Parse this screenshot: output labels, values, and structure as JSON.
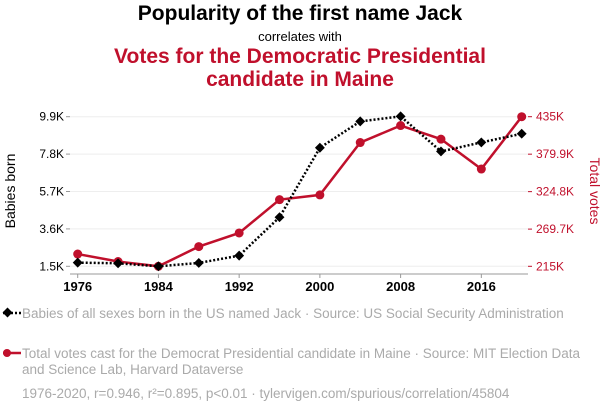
{
  "chart_data": {
    "type": "line",
    "title": "Popularity of the first name Jack",
    "subtitle": "correlates with",
    "title2": "Votes for the Democratic Presidential candidate in Maine",
    "x": [
      1976,
      1980,
      1984,
      1988,
      1992,
      1996,
      2000,
      2004,
      2008,
      2012,
      2016,
      2020
    ],
    "xticks": [
      "1976",
      "1984",
      "1992",
      "2000",
      "2008",
      "2016"
    ],
    "xtick_values": [
      1976,
      1984,
      1992,
      2000,
      2008,
      2016
    ],
    "ylabel_left": "Babies born",
    "ylabel_right": "Total votes",
    "yticks_left": [
      "9.9K",
      "7.8K",
      "5.7K",
      "3.6K",
      "1.5K"
    ],
    "ytick_values_left": [
      9900,
      7800,
      5700,
      3600,
      1500
    ],
    "yticks_right": [
      "435K",
      "379.9K",
      "324.8K",
      "269.7K",
      "215K"
    ],
    "ytick_values_right": [
      435000,
      379900,
      324800,
      269700,
      215000
    ],
    "ylim_left": [
      1500,
      9900
    ],
    "ylim_right": [
      215000,
      435000
    ],
    "series": [
      {
        "name": "Babies of all sexes born in the US named Jack · Source: US Social Security Administration",
        "color": "#000000",
        "axis": "left",
        "values": [
          1706,
          1669,
          1500,
          1688,
          2100,
          4256,
          8156,
          9638,
          9919,
          7950,
          8456,
          8944
        ]
      },
      {
        "name": "Total votes cast for the Democrat Presidential candidate in Maine · Source: MIT Election Data and Science Lab, Harvard Dataverse",
        "color": "#c0102c",
        "axis": "right",
        "values": [
          233000,
          222000,
          215000,
          244000,
          264000,
          313000,
          320000,
          397000,
          422000,
          402000,
          358000,
          435000
        ]
      }
    ],
    "footer": "1976-2020, r=0.946, r²=0.895, p<0.01 · tylervigen.com/spurious/correlation/45804"
  }
}
